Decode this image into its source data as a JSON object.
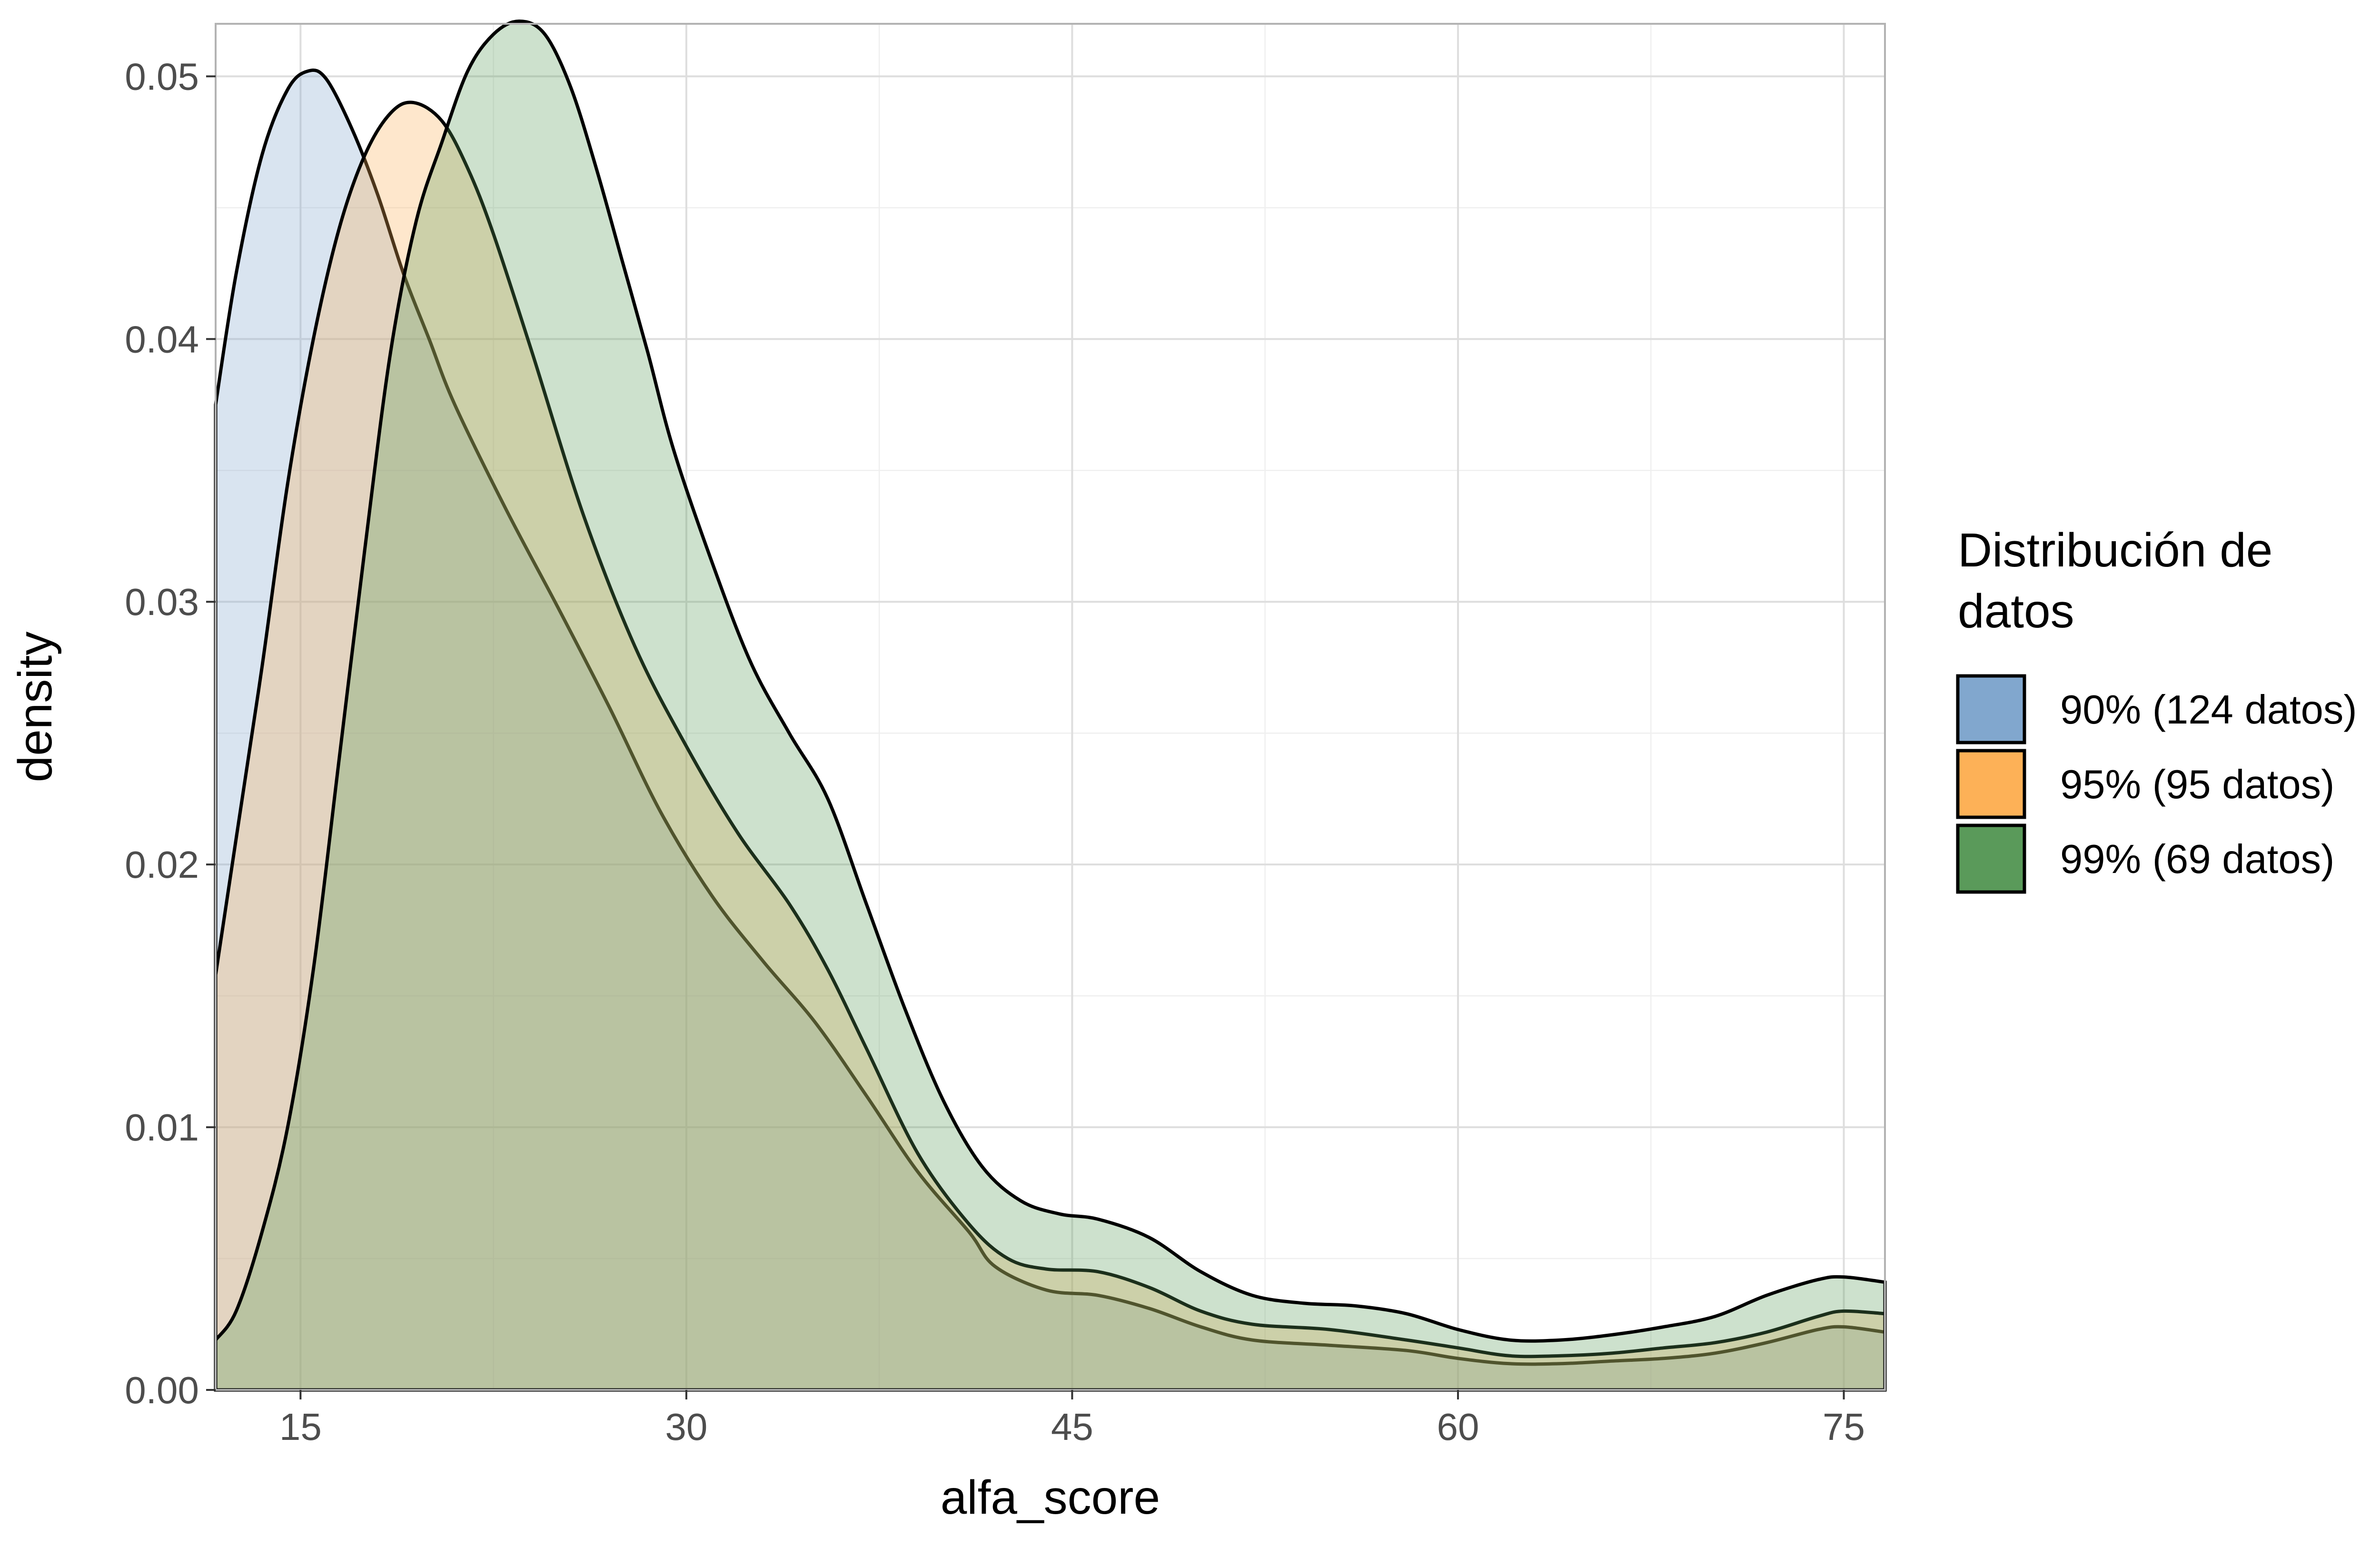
{
  "chart_data": {
    "type": "area",
    "subtype": "density",
    "title": "",
    "xlabel": "alfa_score",
    "ylabel": "density",
    "xlim": [
      11.7,
      76.6
    ],
    "ylim": [
      0,
      0.052
    ],
    "x_ticks": [
      15,
      30,
      45,
      60,
      75
    ],
    "x_tick_labels": [
      "15",
      "30",
      "45",
      "60",
      "75"
    ],
    "y_ticks": [
      0,
      0.01,
      0.02,
      0.03,
      0.04,
      0.05
    ],
    "y_tick_labels": [
      "0.00",
      "0.01",
      "0.02",
      "0.03",
      "0.04",
      "0.05"
    ],
    "grid": true,
    "legend": {
      "title": "Distribución de datos",
      "title_lines": [
        "Distribución de",
        "datos"
      ],
      "placement": "right"
    },
    "series": [
      {
        "name": "90% (124 datos)",
        "color": "#81A7CE",
        "points": [
          [
            11.7,
            0.0375
          ],
          [
            12.5,
            0.0425
          ],
          [
            13.5,
            0.047
          ],
          [
            14.5,
            0.0495
          ],
          [
            15.3,
            0.0502
          ],
          [
            16.0,
            0.0499
          ],
          [
            17.0,
            0.048
          ],
          [
            18.0,
            0.0455
          ],
          [
            19.0,
            0.0425
          ],
          [
            20.0,
            0.04
          ],
          [
            21.0,
            0.0375
          ],
          [
            23.0,
            0.0335
          ],
          [
            25.0,
            0.0298
          ],
          [
            27.0,
            0.026
          ],
          [
            29.0,
            0.022
          ],
          [
            31.0,
            0.0188
          ],
          [
            33.0,
            0.0163
          ],
          [
            35.0,
            0.014
          ],
          [
            37.0,
            0.0112
          ],
          [
            39.0,
            0.0083
          ],
          [
            41.0,
            0.006
          ],
          [
            42.0,
            0.0047
          ],
          [
            44.0,
            0.0038
          ],
          [
            46.0,
            0.0036
          ],
          [
            48.0,
            0.0031
          ],
          [
            50.0,
            0.0024
          ],
          [
            52.0,
            0.0019
          ],
          [
            55.0,
            0.0017
          ],
          [
            58.0,
            0.0015
          ],
          [
            60.0,
            0.0012
          ],
          [
            62.0,
            0.001
          ],
          [
            64.0,
            0.001
          ],
          [
            66.0,
            0.0011
          ],
          [
            68.0,
            0.0012
          ],
          [
            70.0,
            0.0014
          ],
          [
            72.0,
            0.0018
          ],
          [
            74.0,
            0.0023
          ],
          [
            75.0,
            0.0024
          ],
          [
            76.6,
            0.0022
          ]
        ]
      },
      {
        "name": "95% (95 datos)",
        "color": "#FDB157",
        "points": [
          [
            11.7,
            0.0158
          ],
          [
            12.5,
            0.021
          ],
          [
            13.5,
            0.0275
          ],
          [
            14.5,
            0.0345
          ],
          [
            15.5,
            0.04
          ],
          [
            16.5,
            0.0442
          ],
          [
            17.5,
            0.047
          ],
          [
            18.5,
            0.0486
          ],
          [
            19.4,
            0.049
          ],
          [
            20.5,
            0.0483
          ],
          [
            21.5,
            0.0465
          ],
          [
            22.5,
            0.044
          ],
          [
            24.0,
            0.0395
          ],
          [
            26.0,
            0.0333
          ],
          [
            28.0,
            0.0283
          ],
          [
            30.0,
            0.0245
          ],
          [
            32.0,
            0.0212
          ],
          [
            34.0,
            0.0185
          ],
          [
            35.5,
            0.016
          ],
          [
            37.0,
            0.013
          ],
          [
            39.0,
            0.009
          ],
          [
            41.0,
            0.0063
          ],
          [
            42.5,
            0.005
          ],
          [
            44.0,
            0.0046
          ],
          [
            46.0,
            0.0045
          ],
          [
            48.0,
            0.0039
          ],
          [
            50.0,
            0.003
          ],
          [
            52.0,
            0.0025
          ],
          [
            55.0,
            0.0023
          ],
          [
            58.0,
            0.0019
          ],
          [
            60.0,
            0.0016
          ],
          [
            62.0,
            0.0013
          ],
          [
            64.0,
            0.0013
          ],
          [
            66.0,
            0.0014
          ],
          [
            68.0,
            0.0016
          ],
          [
            70.0,
            0.0018
          ],
          [
            72.0,
            0.0022
          ],
          [
            74.0,
            0.0028
          ],
          [
            75.0,
            0.003
          ],
          [
            76.6,
            0.0029
          ]
        ]
      },
      {
        "name": "99% (69 datos)",
        "color": "#5A9A5A",
        "points": [
          [
            11.7,
            0.0019
          ],
          [
            12.5,
            0.003
          ],
          [
            13.5,
            0.006
          ],
          [
            14.5,
            0.01
          ],
          [
            15.5,
            0.016
          ],
          [
            16.5,
            0.024
          ],
          [
            17.5,
            0.032
          ],
          [
            18.5,
            0.0395
          ],
          [
            19.5,
            0.0445
          ],
          [
            20.5,
            0.0475
          ],
          [
            21.5,
            0.0502
          ],
          [
            22.5,
            0.0516
          ],
          [
            23.5,
            0.0521
          ],
          [
            24.5,
            0.0516
          ],
          [
            25.5,
            0.0496
          ],
          [
            26.5,
            0.0465
          ],
          [
            27.5,
            0.043
          ],
          [
            28.5,
            0.0395
          ],
          [
            29.5,
            0.0358
          ],
          [
            31.0,
            0.0315
          ],
          [
            32.5,
            0.0277
          ],
          [
            34.0,
            0.025
          ],
          [
            35.5,
            0.0225
          ],
          [
            37.0,
            0.0185
          ],
          [
            38.5,
            0.0145
          ],
          [
            40.0,
            0.011
          ],
          [
            41.5,
            0.0085
          ],
          [
            43.0,
            0.0072
          ],
          [
            44.5,
            0.0067
          ],
          [
            46.0,
            0.0065
          ],
          [
            48.0,
            0.0058
          ],
          [
            50.0,
            0.0045
          ],
          [
            52.0,
            0.0036
          ],
          [
            54.0,
            0.0033
          ],
          [
            56.0,
            0.0032
          ],
          [
            58.0,
            0.0029
          ],
          [
            60.0,
            0.0023
          ],
          [
            62.0,
            0.0019
          ],
          [
            64.0,
            0.0019
          ],
          [
            66.0,
            0.0021
          ],
          [
            68.0,
            0.0024
          ],
          [
            70.0,
            0.0028
          ],
          [
            72.0,
            0.0036
          ],
          [
            74.0,
            0.0042
          ],
          [
            75.0,
            0.0043
          ],
          [
            76.6,
            0.0041
          ]
        ]
      }
    ],
    "legend_entries": [
      {
        "label": "90% (124 datos)",
        "fill": "#81A7CE"
      },
      {
        "label": "95% (95 datos)",
        "fill": "#FDB157"
      },
      {
        "label": "99% (69 datos)",
        "fill": "#5A9A5A"
      }
    ]
  }
}
